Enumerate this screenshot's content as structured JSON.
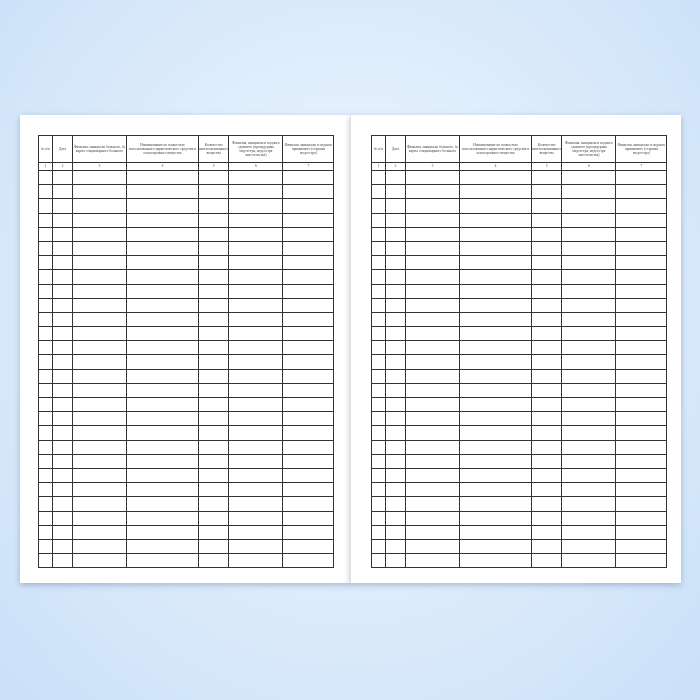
{
  "columns": [
    {
      "header": "№ п/п",
      "number": "1"
    },
    {
      "header": "Дата",
      "number": "2"
    },
    {
      "header": "Фамилия, инициалы больного, № карты стационарного больного",
      "number": "3"
    },
    {
      "header": "Наименование не полностью использованного наркотического средства и психотропного вещества",
      "number": "4"
    },
    {
      "header": "Количество неиспользованного вещества",
      "number": "5"
    },
    {
      "header": "Фамилия, инициалы и подпись сдавшего (процедурная медсестра, медсестра анестезистка)",
      "number": "6"
    },
    {
      "header": "Фамилия, инициалы и подпись принявшего (старшая медсестра)",
      "number": "7"
    }
  ],
  "row_count": 28
}
